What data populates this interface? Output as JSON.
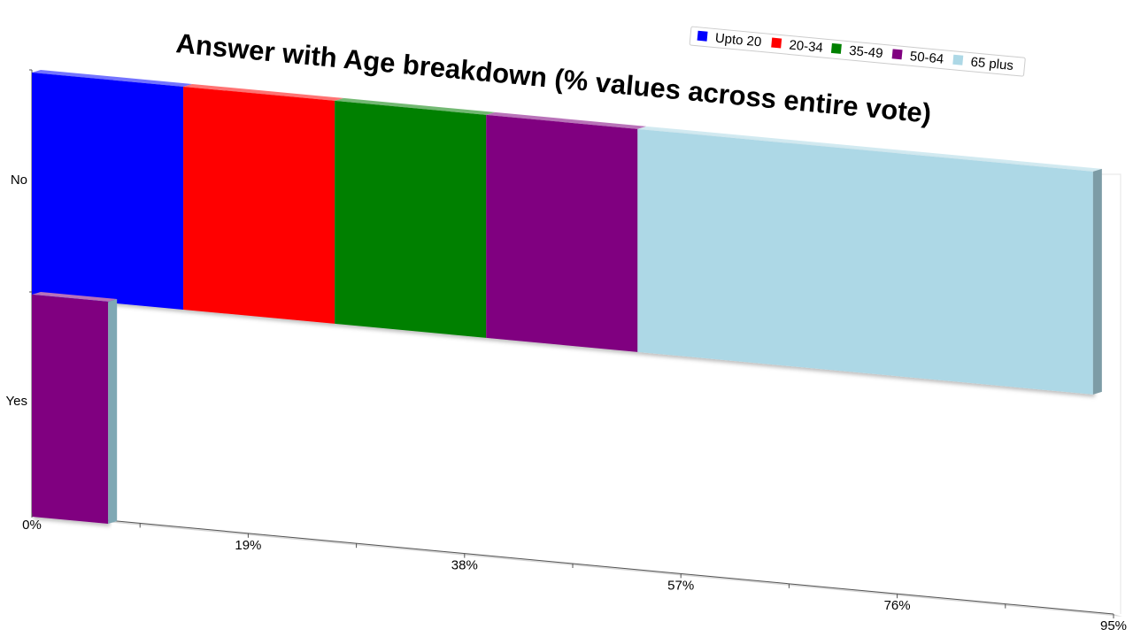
{
  "chart_data": {
    "type": "bar",
    "orientation": "horizontal",
    "stacked": true,
    "title": "Answer with Age breakdown (% values across entire vote)",
    "xlabel": "",
    "ylabel": "",
    "categories": [
      "No",
      "Yes"
    ],
    "series": [
      {
        "name": "Upto 20",
        "color": "#0000ff",
        "values": [
          13.3,
          0
        ]
      },
      {
        "name": "20-34",
        "color": "#ff0000",
        "values": [
          13.3,
          0
        ]
      },
      {
        "name": "35-49",
        "color": "#008000",
        "values": [
          13.3,
          0
        ]
      },
      {
        "name": "50-64",
        "color": "#800080",
        "values": [
          13.3,
          6.7
        ]
      },
      {
        "name": "65 plus",
        "color": "#add8e6",
        "values": [
          40.0,
          0
        ]
      }
    ],
    "xlim": [
      0,
      95
    ],
    "x_ticks": [
      "0%",
      "19%",
      "38%",
      "57%",
      "76%",
      "95%"
    ],
    "legend_position": "top-right",
    "grid": false
  }
}
